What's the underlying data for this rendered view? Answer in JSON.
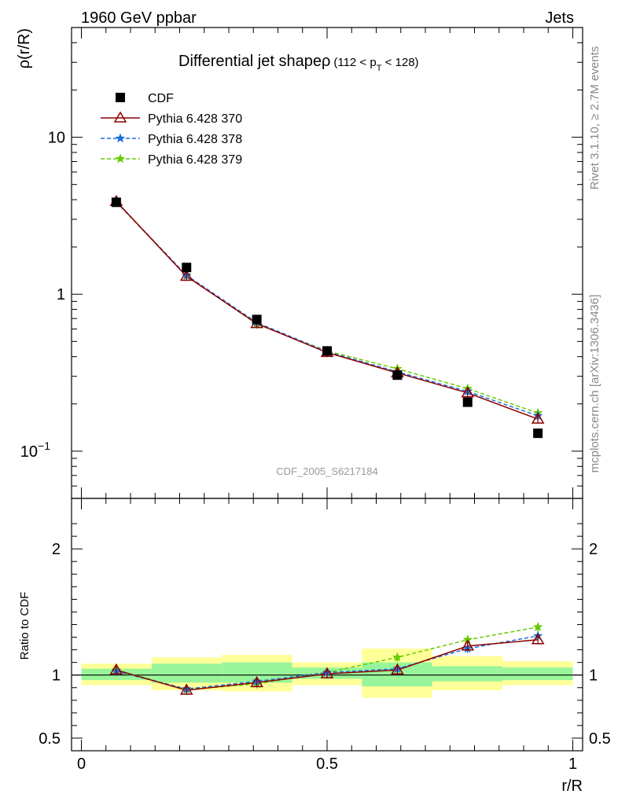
{
  "header": {
    "left": "1960 GeV ppbar",
    "right": "Jets"
  },
  "side_labels": {
    "rivet": "Rivet 3.1.10, ≥ 2.7M events",
    "mcplots": "mcplots.cern.ch [arXiv:1306.3436]"
  },
  "watermark": "CDF_2005_S6217184",
  "chart_data": [
    {
      "type": "line",
      "title": "Differential jet shapeρ",
      "title_range": {
        "pre": "(112 < p",
        "sub": "T",
        "post": " < 128)"
      },
      "ylabel": "ρ(r/R)",
      "xlabel": "",
      "yscale": "log",
      "ylim": [
        0.05,
        50
      ],
      "xlim": [
        -0.02,
        1.02
      ],
      "y_ticks": [
        {
          "label": "10",
          "value": 10
        },
        {
          "label": "1",
          "value": 1
        },
        {
          "label": "10",
          "sup": "−1",
          "value": 0.1
        }
      ],
      "x": [
        0.071,
        0.214,
        0.357,
        0.5,
        0.643,
        0.786,
        0.929
      ],
      "series": [
        {
          "name": "CDF",
          "color": "#000000",
          "marker": "square",
          "values": [
            3.85,
            1.48,
            0.69,
            0.435,
            0.305,
            0.205,
            0.13
          ]
        },
        {
          "name": "Pythia 6.428 370",
          "color": "#8b0000",
          "marker": "triangle",
          "line": "solid",
          "values": [
            3.9,
            1.3,
            0.65,
            0.425,
            0.315,
            0.235,
            0.16
          ]
        },
        {
          "name": "Pythia 6.428 378",
          "color": "#1e6fd9",
          "marker": "star",
          "line": "dashed",
          "values": [
            3.88,
            1.32,
            0.66,
            0.43,
            0.32,
            0.24,
            0.168
          ]
        },
        {
          "name": "Pythia 6.428 379",
          "color": "#66cc00",
          "marker": "star",
          "line": "dashed",
          "values": [
            3.86,
            1.31,
            0.645,
            0.435,
            0.335,
            0.25,
            0.175
          ]
        }
      ]
    },
    {
      "type": "line",
      "ylabel": "Ratio to CDF",
      "xlabel": "r/R",
      "ylim": [
        0.4,
        2.4
      ],
      "xlim": [
        -0.02,
        1.02
      ],
      "y_ticks": [
        {
          "label": "2",
          "value": 2
        },
        {
          "label": "1",
          "value": 1
        },
        {
          "label": "0.5",
          "value": 0.5
        }
      ],
      "x_ticks": [
        {
          "label": "0",
          "value": 0
        },
        {
          "label": "0.5",
          "value": 0.5
        },
        {
          "label": "1",
          "value": 1
        }
      ],
      "x": [
        0.071,
        0.214,
        0.357,
        0.5,
        0.643,
        0.786,
        0.929
      ],
      "bins": [
        [
          0,
          0.143
        ],
        [
          0.143,
          0.286
        ],
        [
          0.286,
          0.429
        ],
        [
          0.429,
          0.571
        ],
        [
          0.571,
          0.714
        ],
        [
          0.714,
          0.857
        ],
        [
          0.857,
          1.0
        ]
      ],
      "band_yellow": [
        [
          0.92,
          1.09
        ],
        [
          0.88,
          1.14
        ],
        [
          0.87,
          1.16
        ],
        [
          0.92,
          1.1
        ],
        [
          0.82,
          1.21
        ],
        [
          0.88,
          1.15
        ],
        [
          0.92,
          1.11
        ]
      ],
      "band_green": [
        [
          0.96,
          1.05
        ],
        [
          0.94,
          1.09
        ],
        [
          0.94,
          1.1
        ],
        [
          0.97,
          1.06
        ],
        [
          0.91,
          1.1
        ],
        [
          0.95,
          1.07
        ],
        [
          0.96,
          1.06
        ]
      ],
      "band_colors": {
        "yellow": "#ffff99",
        "green": "#99f599"
      },
      "series": [
        {
          "name": "Pythia 6.428 370",
          "color": "#8b0000",
          "marker": "triangle",
          "line": "solid",
          "values": [
            1.04,
            0.88,
            0.94,
            1.01,
            1.04,
            1.23,
            1.28
          ]
        },
        {
          "name": "Pythia 6.428 378",
          "color": "#1e6fd9",
          "marker": "star",
          "line": "dashed",
          "values": [
            1.03,
            0.89,
            0.95,
            1.02,
            1.05,
            1.21,
            1.31
          ]
        },
        {
          "name": "Pythia 6.428 379",
          "color": "#66cc00",
          "marker": "star",
          "line": "dashed",
          "values": [
            1.04,
            0.885,
            0.93,
            1.02,
            1.14,
            1.28,
            1.38
          ]
        }
      ]
    }
  ]
}
